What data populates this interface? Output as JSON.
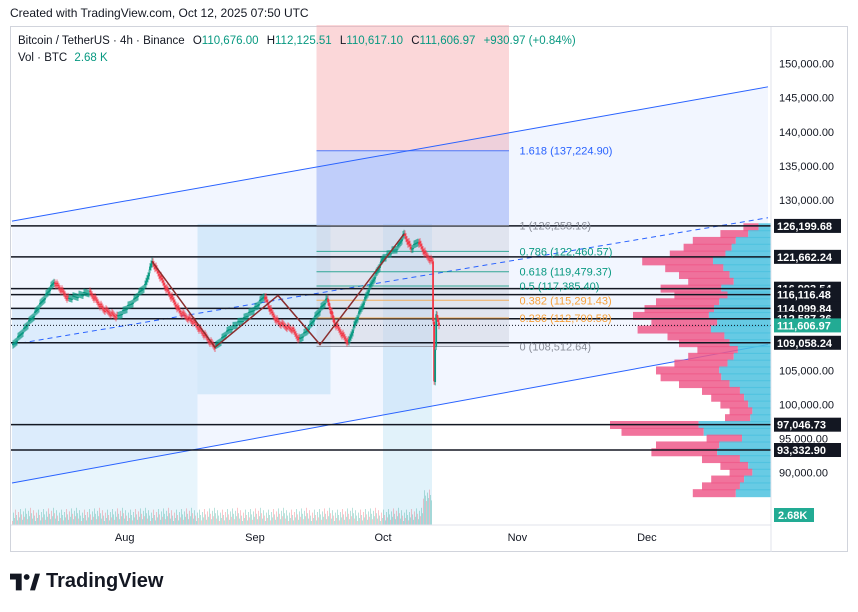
{
  "header": {
    "created": "Created with TradingView.com, Oct 12, 2025 07:50 UTC"
  },
  "legend": {
    "symbol": "Bitcoin / TetherUS · 4h · Binance",
    "o_label": "O",
    "o": "110,676.00",
    "h_label": "H",
    "h": "112,125.51",
    "l_label": "L",
    "l": "110,617.10",
    "c_label": "C",
    "c": "111,606.97",
    "change": "+930.97 (+0.84%)",
    "vol_label": "Vol · BTC",
    "vol": "2.68 K"
  },
  "footer": {
    "brand": "TradingView"
  },
  "colors": {
    "up": "#089981",
    "down": "#f23645",
    "trend": "#2962ff",
    "fib_text": "#089981",
    "fib_ext": "#2962ff"
  },
  "chart_data": {
    "type": "candlestick",
    "symbol": "BTCUSDT",
    "timeframe": "4h",
    "ylim": [
      86000,
      152000
    ],
    "x_ticks": [
      "Aug",
      "Sep",
      "Oct",
      "Nov",
      "Dec"
    ],
    "y_ticks": [
      "150,000.00",
      "145,000.00",
      "140,000.00",
      "135,000.00",
      "130,000.00",
      "105,000.00",
      "100,000.00",
      "95,000.00",
      "90,000.00"
    ],
    "y_tick_values": [
      150000,
      145000,
      140000,
      135000,
      130000,
      105000,
      100000,
      95000,
      90000
    ],
    "price_path": [
      [
        0,
        108500
      ],
      [
        3,
        113000
      ],
      [
        6,
        118000
      ],
      [
        8,
        115500
      ],
      [
        11,
        116500
      ],
      [
        13,
        114000
      ],
      [
        15,
        112800
      ],
      [
        17,
        114800
      ],
      [
        19,
        117500
      ],
      [
        20,
        121000
      ],
      [
        22,
        117000
      ],
      [
        24,
        113500
      ],
      [
        26,
        112000
      ],
      [
        28,
        109500
      ],
      [
        29,
        108400
      ],
      [
        31,
        111000
      ],
      [
        33,
        112500
      ],
      [
        35,
        114500
      ],
      [
        36,
        116000
      ],
      [
        37,
        113500
      ],
      [
        38,
        112000
      ],
      [
        40,
        111000
      ],
      [
        41,
        109500
      ],
      [
        42,
        110700
      ],
      [
        44,
        114000
      ],
      [
        45,
        115500
      ],
      [
        46,
        112000
      ],
      [
        48,
        109000
      ],
      [
        49,
        112000
      ],
      [
        51,
        117000
      ],
      [
        53,
        121500
      ],
      [
        55,
        123000
      ],
      [
        56,
        125000
      ],
      [
        57,
        122800
      ],
      [
        58,
        124000
      ],
      [
        59,
        122000
      ],
      [
        60,
        121000
      ],
      [
        60.3,
        103500
      ],
      [
        60.6,
        113000
      ],
      [
        61,
        111600
      ]
    ],
    "horizontal_levels": [
      {
        "label": "126,199.68",
        "value": 126199.68
      },
      {
        "label": "121,662.24",
        "value": 121662.24
      },
      {
        "label": "116,993.54",
        "value": 116993.54
      },
      {
        "label": "116,116.48",
        "value": 116116.48
      },
      {
        "label": "114,099.84",
        "value": 114099.84
      },
      {
        "label": "112,587.36",
        "value": 112587.36
      },
      {
        "label": "109,058.24",
        "value": 109058.24
      },
      {
        "label": "97,046.73",
        "value": 97046.73
      },
      {
        "label": "93,332.90",
        "value": 93332.9
      }
    ],
    "current_price": {
      "label": "111,606.97",
      "value": 111606.97
    },
    "volume_badge": "2.68K",
    "fib_levels": [
      {
        "label": "1.618 (137,224.90)",
        "value": 137224.9
      },
      {
        "label": "1 (126,258.16)",
        "value": 126258.16
      },
      {
        "label": "0.786 (122,460.57)",
        "value": 122460.57
      },
      {
        "label": "0.618 (119,479.37)",
        "value": 119479.37
      },
      {
        "label": "0.5 (117,385.40)",
        "value": 117385.4
      },
      {
        "label": "0.382 (115,291.43)",
        "value": 115291.43
      },
      {
        "label": "0.236 (112,700.58)",
        "value": 112700.58
      },
      {
        "label": "0 (108,512.64)",
        "value": 108512.64
      }
    ],
    "channel": {
      "upper": [
        [
          0,
          126900
        ],
        [
          108,
          146600
        ]
      ],
      "lower": [
        [
          0,
          88500
        ],
        [
          108,
          108800
        ]
      ]
    },
    "volume_profile": [
      [
        126000,
        0.12
      ],
      [
        125000,
        0.22
      ],
      [
        124000,
        0.34
      ],
      [
        123000,
        0.38
      ],
      [
        122000,
        0.44
      ],
      [
        121000,
        0.56
      ],
      [
        120000,
        0.46
      ],
      [
        119000,
        0.4
      ],
      [
        118000,
        0.36
      ],
      [
        117000,
        0.48
      ],
      [
        116000,
        0.42
      ],
      [
        115000,
        0.5
      ],
      [
        114000,
        0.55
      ],
      [
        113000,
        0.6
      ],
      [
        112000,
        0.52
      ],
      [
        111000,
        0.58
      ],
      [
        110000,
        0.45
      ],
      [
        109000,
        0.4
      ],
      [
        108000,
        0.32
      ],
      [
        107000,
        0.36
      ],
      [
        106000,
        0.42
      ],
      [
        105000,
        0.5
      ],
      [
        104000,
        0.48
      ],
      [
        103000,
        0.4
      ],
      [
        102000,
        0.3
      ],
      [
        101000,
        0.26
      ],
      [
        100000,
        0.22
      ],
      [
        99000,
        0.18
      ],
      [
        98000,
        0.2
      ],
      [
        97000,
        0.7
      ],
      [
        96000,
        0.65
      ],
      [
        95000,
        0.28
      ],
      [
        94000,
        0.5
      ],
      [
        93000,
        0.52
      ],
      [
        92000,
        0.3
      ],
      [
        91000,
        0.22
      ],
      [
        90000,
        0.18
      ],
      [
        89000,
        0.26
      ],
      [
        88000,
        0.3
      ],
      [
        87000,
        0.34
      ]
    ]
  }
}
